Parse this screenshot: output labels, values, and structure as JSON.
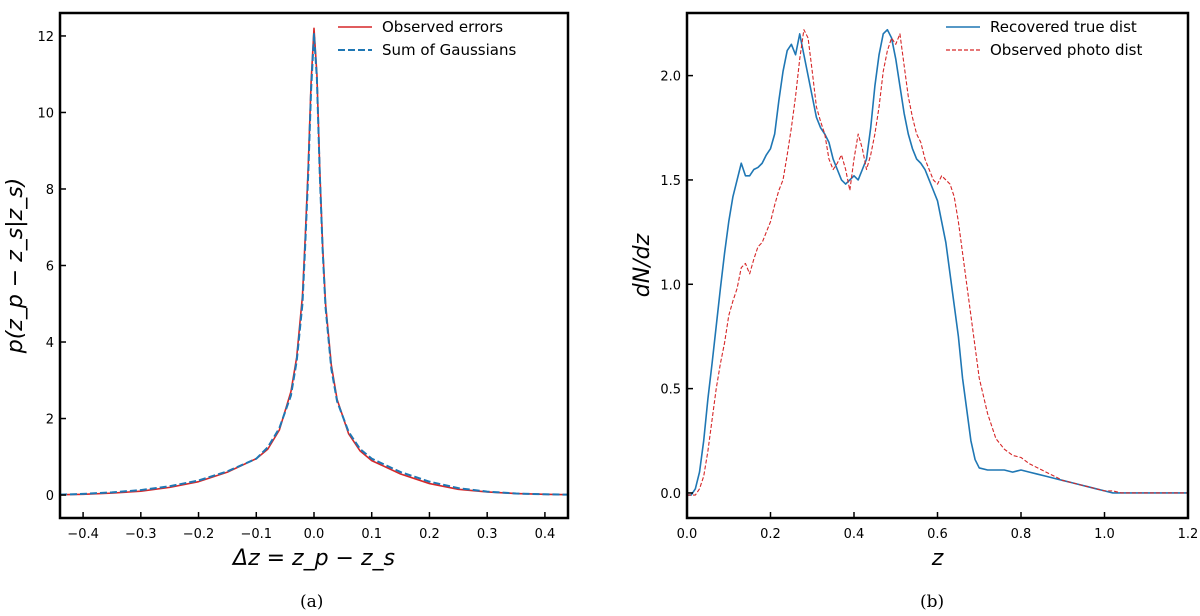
{
  "figure": {
    "caption_a": "(a)",
    "caption_b": "(b)"
  },
  "chart_data": [
    {
      "type": "line",
      "panel": "a",
      "xlabel": "Δz = z_p − z_s",
      "ylabel": "p(z_p − z_s|z_s)",
      "xlim": [
        -0.44,
        0.44
      ],
      "ylim": [
        -0.6,
        12.6
      ],
      "xticks": [
        -0.4,
        -0.3,
        -0.2,
        -0.1,
        0.0,
        0.1,
        0.2,
        0.3,
        0.4
      ],
      "xtick_labels": [
        "−0.4",
        "−0.3",
        "−0.2",
        "−0.1",
        "0.0",
        "0.1",
        "0.2",
        "0.3",
        "0.4"
      ],
      "yticks": [
        0,
        2,
        4,
        6,
        8,
        10,
        12
      ],
      "ytick_labels": [
        "0",
        "2",
        "4",
        "6",
        "8",
        "10",
        "12"
      ],
      "grid": false,
      "legend_position": "top-right",
      "series": [
        {
          "name": "Observed errors",
          "style": "solid",
          "color": "#d62728",
          "x": [
            -0.44,
            -0.4,
            -0.35,
            -0.3,
            -0.25,
            -0.2,
            -0.15,
            -0.1,
            -0.08,
            -0.06,
            -0.04,
            -0.03,
            -0.02,
            -0.015,
            -0.01,
            -0.005,
            0.0,
            0.005,
            0.01,
            0.015,
            0.02,
            0.03,
            0.04,
            0.06,
            0.08,
            0.1,
            0.15,
            0.2,
            0.25,
            0.3,
            0.35,
            0.4,
            0.44
          ],
          "y": [
            0.01,
            0.02,
            0.05,
            0.1,
            0.2,
            0.35,
            0.6,
            0.95,
            1.2,
            1.7,
            2.7,
            3.6,
            5.2,
            6.8,
            8.6,
            10.8,
            12.2,
            11.0,
            8.5,
            6.5,
            5.0,
            3.4,
            2.5,
            1.6,
            1.15,
            0.9,
            0.55,
            0.3,
            0.15,
            0.08,
            0.04,
            0.02,
            0.01
          ]
        },
        {
          "name": "Sum of Gaussians",
          "style": "dashed",
          "color": "#1f77b4",
          "x": [
            -0.44,
            -0.4,
            -0.35,
            -0.3,
            -0.25,
            -0.2,
            -0.15,
            -0.1,
            -0.08,
            -0.06,
            -0.04,
            -0.03,
            -0.02,
            -0.015,
            -0.01,
            -0.005,
            0.0,
            0.005,
            0.01,
            0.015,
            0.02,
            0.03,
            0.04,
            0.06,
            0.08,
            0.1,
            0.15,
            0.2,
            0.25,
            0.3,
            0.35,
            0.4,
            0.44
          ],
          "y": [
            0.01,
            0.03,
            0.07,
            0.13,
            0.23,
            0.38,
            0.62,
            0.95,
            1.25,
            1.75,
            2.6,
            3.5,
            5.0,
            6.6,
            8.4,
            10.6,
            12.05,
            10.9,
            8.4,
            6.4,
            4.9,
            3.3,
            2.45,
            1.65,
            1.2,
            0.95,
            0.6,
            0.35,
            0.18,
            0.09,
            0.04,
            0.02,
            0.01
          ]
        }
      ]
    },
    {
      "type": "line",
      "panel": "b",
      "xlabel": "z",
      "ylabel": "dN/dz",
      "xlim": [
        0.0,
        1.2
      ],
      "ylim": [
        -0.12,
        2.3
      ],
      "xticks": [
        0.0,
        0.2,
        0.4,
        0.6,
        0.8,
        1.0,
        1.2
      ],
      "xtick_labels": [
        "0.0",
        "0.2",
        "0.4",
        "0.6",
        "0.8",
        "1.0",
        "1.2"
      ],
      "yticks": [
        0.0,
        0.5,
        1.0,
        1.5,
        2.0
      ],
      "ytick_labels": [
        "0.0",
        "0.5",
        "1.0",
        "1.5",
        "2.0"
      ],
      "grid": false,
      "legend_position": "top-right",
      "series": [
        {
          "name": "Recovered true dist",
          "style": "solid",
          "color": "#1f77b4",
          "x": [
            0.0,
            0.01,
            0.02,
            0.03,
            0.04,
            0.05,
            0.06,
            0.07,
            0.08,
            0.09,
            0.1,
            0.11,
            0.12,
            0.13,
            0.14,
            0.15,
            0.16,
            0.17,
            0.18,
            0.19,
            0.2,
            0.21,
            0.22,
            0.23,
            0.24,
            0.25,
            0.26,
            0.27,
            0.28,
            0.29,
            0.3,
            0.31,
            0.32,
            0.33,
            0.34,
            0.35,
            0.36,
            0.37,
            0.38,
            0.39,
            0.4,
            0.41,
            0.42,
            0.43,
            0.44,
            0.45,
            0.46,
            0.47,
            0.48,
            0.49,
            0.5,
            0.51,
            0.52,
            0.53,
            0.54,
            0.55,
            0.56,
            0.57,
            0.58,
            0.59,
            0.6,
            0.61,
            0.62,
            0.63,
            0.64,
            0.65,
            0.66,
            0.67,
            0.68,
            0.69,
            0.7,
            0.72,
            0.74,
            0.76,
            0.78,
            0.8,
            0.82,
            0.84,
            0.86,
            0.88,
            0.9,
            0.92,
            0.94,
            0.96,
            0.98,
            1.0,
            1.02,
            1.04,
            1.06,
            1.08,
            1.1,
            1.15,
            1.2
          ],
          "y": [
            -0.01,
            -0.01,
            0.02,
            0.1,
            0.25,
            0.45,
            0.62,
            0.8,
            0.98,
            1.15,
            1.3,
            1.42,
            1.5,
            1.58,
            1.52,
            1.52,
            1.55,
            1.56,
            1.58,
            1.62,
            1.65,
            1.72,
            1.88,
            2.02,
            2.12,
            2.15,
            2.1,
            2.2,
            2.1,
            2.0,
            1.9,
            1.8,
            1.75,
            1.72,
            1.68,
            1.6,
            1.55,
            1.5,
            1.48,
            1.5,
            1.52,
            1.5,
            1.55,
            1.6,
            1.75,
            1.95,
            2.1,
            2.2,
            2.22,
            2.18,
            2.08,
            1.95,
            1.82,
            1.72,
            1.65,
            1.6,
            1.58,
            1.55,
            1.5,
            1.45,
            1.4,
            1.3,
            1.2,
            1.05,
            0.9,
            0.75,
            0.55,
            0.4,
            0.25,
            0.16,
            0.12,
            0.11,
            0.11,
            0.11,
            0.1,
            0.11,
            0.1,
            0.09,
            0.08,
            0.07,
            0.06,
            0.05,
            0.04,
            0.03,
            0.02,
            0.01,
            0.0,
            0.0,
            0.0,
            0.0,
            0.0,
            0.0,
            0.0
          ]
        },
        {
          "name": "Observed photo dist",
          "style": "dashed",
          "color": "#d62728",
          "x": [
            0.0,
            0.01,
            0.02,
            0.03,
            0.04,
            0.05,
            0.06,
            0.07,
            0.08,
            0.09,
            0.1,
            0.11,
            0.12,
            0.13,
            0.14,
            0.15,
            0.16,
            0.17,
            0.18,
            0.19,
            0.2,
            0.21,
            0.22,
            0.23,
            0.24,
            0.25,
            0.26,
            0.27,
            0.28,
            0.29,
            0.3,
            0.31,
            0.32,
            0.33,
            0.34,
            0.35,
            0.36,
            0.37,
            0.38,
            0.39,
            0.4,
            0.41,
            0.42,
            0.43,
            0.44,
            0.45,
            0.46,
            0.47,
            0.48,
            0.49,
            0.5,
            0.51,
            0.52,
            0.53,
            0.54,
            0.55,
            0.56,
            0.57,
            0.58,
            0.59,
            0.6,
            0.61,
            0.62,
            0.63,
            0.64,
            0.65,
            0.66,
            0.67,
            0.68,
            0.69,
            0.7,
            0.72,
            0.74,
            0.76,
            0.78,
            0.8,
            0.82,
            0.84,
            0.86,
            0.88,
            0.9,
            0.92,
            0.94,
            0.96,
            0.98,
            1.0,
            1.02,
            1.04,
            1.06,
            1.08,
            1.1,
            1.15,
            1.2
          ],
          "y": [
            -0.01,
            -0.01,
            -0.01,
            0.02,
            0.08,
            0.2,
            0.35,
            0.5,
            0.62,
            0.72,
            0.85,
            0.92,
            0.98,
            1.08,
            1.1,
            1.05,
            1.12,
            1.18,
            1.2,
            1.25,
            1.3,
            1.38,
            1.45,
            1.5,
            1.62,
            1.75,
            1.9,
            2.08,
            2.22,
            2.18,
            2.02,
            1.85,
            1.78,
            1.72,
            1.6,
            1.55,
            1.58,
            1.62,
            1.55,
            1.45,
            1.6,
            1.72,
            1.65,
            1.55,
            1.62,
            1.72,
            1.85,
            2.02,
            2.12,
            2.18,
            2.15,
            2.2,
            2.05,
            1.9,
            1.8,
            1.72,
            1.68,
            1.6,
            1.55,
            1.5,
            1.48,
            1.52,
            1.5,
            1.48,
            1.42,
            1.3,
            1.15,
            1.0,
            0.85,
            0.7,
            0.55,
            0.38,
            0.26,
            0.21,
            0.18,
            0.17,
            0.14,
            0.12,
            0.1,
            0.08,
            0.06,
            0.05,
            0.04,
            0.03,
            0.02,
            0.01,
            0.01,
            0.0,
            0.0,
            0.0,
            0.0,
            0.0,
            0.0
          ]
        }
      ]
    }
  ]
}
